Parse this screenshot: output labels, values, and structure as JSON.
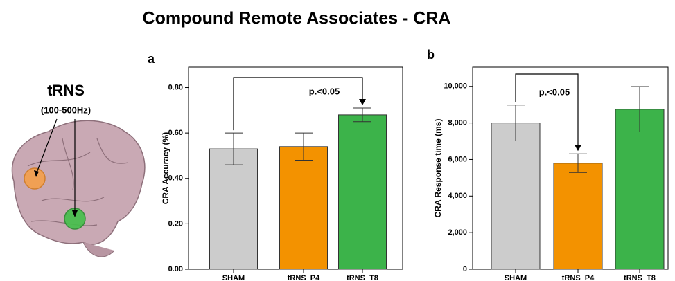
{
  "title": "Compound Remote Associates - CRA",
  "brain_label": "tRNS",
  "brain_sublabel": "(100-500Hz)",
  "chart_data": [
    {
      "type": "bar",
      "panel": "a",
      "ylabel": "CRA Accuracy (%)",
      "categories": [
        "SHAM",
        "tRNS  P4",
        "tRNS  T8"
      ],
      "values": [
        0.53,
        0.54,
        0.68
      ],
      "errors": [
        0.07,
        0.06,
        0.03
      ],
      "colors": [
        "#cccccc",
        "#f39200",
        "#3cb34a"
      ],
      "ylim": [
        0,
        0.89
      ],
      "yticks": [
        {
          "value": 0,
          "label": "0.00"
        },
        {
          "value": 0.2,
          "label": "0.20"
        },
        {
          "value": 0.4,
          "label": "0.40"
        },
        {
          "value": 0.6,
          "label": "0.60"
        },
        {
          "value": 0.8,
          "label": "0.80"
        }
      ],
      "annotation": "p.<0.05"
    },
    {
      "type": "bar",
      "panel": "b",
      "ylabel": "CRA Response time (ms)",
      "categories": [
        "SHAM",
        "tRNS  P4",
        "tRNS  T8"
      ],
      "values": [
        8000,
        5800,
        8750
      ],
      "errors": [
        980,
        510,
        1240
      ],
      "colors": [
        "#cccccc",
        "#f39200",
        "#3cb34a"
      ],
      "ylim": [
        0,
        11050
      ],
      "yticks": [
        0,
        {
          "value": 2000,
          "label": "2,000"
        },
        {
          "value": 4000,
          "label": "4,000"
        },
        {
          "value": 6000,
          "label": "6,000"
        },
        {
          "value": 8000,
          "label": "8,000"
        },
        {
          "value": 10000,
          "label": "10,000"
        }
      ],
      "annotation": "p.<0.05"
    }
  ]
}
